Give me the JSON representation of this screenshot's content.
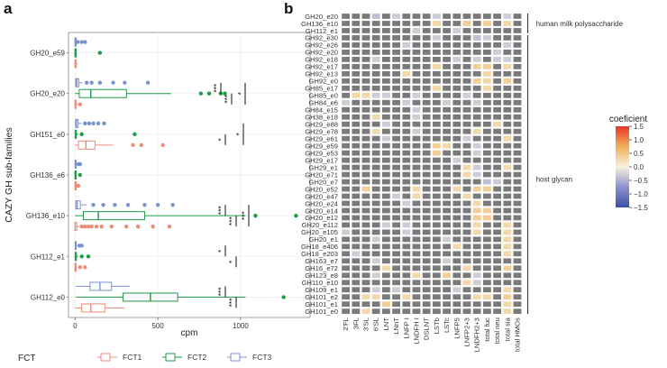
{
  "chart_data": [
    {
      "panel": "a",
      "type": "boxplot",
      "title": "",
      "xlabel": "cpm",
      "ylabel": "CAZY GH sub-families",
      "xlim": [
        -40,
        1420
      ],
      "x_ticks": [
        0,
        500,
        1000
      ],
      "categories": [
        "GH20_e59",
        "GH20_e20",
        "GH151_e0",
        "GH136_e6",
        "GH136_e10",
        "GH112_e1",
        "GH112_e0"
      ],
      "legend": {
        "title": "FCT",
        "position": "bottom",
        "entries": [
          {
            "name": "FCT1",
            "color": "#f08a78"
          },
          {
            "name": "FCT2",
            "color": "#1e9a48"
          },
          {
            "name": "FCT3",
            "color": "#7b93cc"
          }
        ]
      },
      "series": [
        {
          "name": "FCT3",
          "boxes": [
            {
              "category": "GH20_e59",
              "stats": [
                0,
                0,
                0,
                2,
                6
              ],
              "outliers": [
                15,
                40,
                60
              ]
            },
            {
              "category": "GH20_e20",
              "stats": [
                0,
                3,
                10,
                22,
                45
              ],
              "outliers": [
                70,
                100,
                150,
                230,
                300,
                440
              ]
            },
            {
              "category": "GH151_e0",
              "stats": [
                0,
                3,
                8,
                18,
                40
              ],
              "outliers": [
                60,
                85,
                110,
                140,
                175
              ]
            },
            {
              "category": "GH136_e6",
              "stats": [
                0,
                0,
                1,
                3,
                8
              ],
              "outliers": [
                20,
                30
              ]
            },
            {
              "category": "GH136_e10",
              "stats": [
                0,
                4,
                12,
                32,
                70
              ],
              "outliers": [
                110,
                170,
                240,
                320,
                420,
                500,
                590
              ]
            },
            {
              "category": "GH112_e1",
              "stats": [
                0,
                0,
                2,
                5,
                10
              ],
              "outliers": [
                25,
                40
              ]
            },
            {
              "category": "GH112_e0",
              "stats": [
                5,
                90,
                150,
                220,
                330
              ],
              "outliers": []
            }
          ]
        },
        {
          "name": "FCT2",
          "boxes": [
            {
              "category": "GH20_e59",
              "stats": [
                0,
                0,
                0,
                3,
                8
              ],
              "outliers": [
                150
              ]
            },
            {
              "category": "GH20_e20",
              "stats": [
                0,
                25,
                95,
                310,
                580
              ],
              "outliers": [
                760,
                810,
                880,
                905
              ]
            },
            {
              "category": "GH151_e0",
              "stats": [
                0,
                0,
                2,
                8,
                20
              ],
              "outliers": [
                40,
                360
              ]
            },
            {
              "category": "GH136_e6",
              "stats": [
                0,
                0,
                0,
                2,
                5
              ],
              "outliers": [
                30
              ]
            },
            {
              "category": "GH136_e10",
              "stats": [
                0,
                50,
                140,
                420,
                1030
              ],
              "outliers": [
                1090,
                1335
              ]
            },
            {
              "category": "GH112_e1",
              "stats": [
                0,
                0,
                2,
                8,
                18
              ],
              "outliers": [
                40,
                80
              ]
            },
            {
              "category": "GH112_e0",
              "stats": [
                5,
                290,
                455,
                620,
                1030
              ],
              "outliers": [
                1260
              ]
            }
          ]
        },
        {
          "name": "FCT1",
          "boxes": [
            {
              "category": "GH20_e59",
              "stats": [
                0,
                0,
                0,
                6,
                15
              ],
              "outliers": []
            },
            {
              "category": "GH20_e20",
              "stats": [
                0,
                0,
                0,
                5,
                12
              ],
              "outliers": [
                30
              ]
            },
            {
              "category": "GH151_e0",
              "stats": [
                0,
                20,
                65,
                120,
                230
              ],
              "outliers": [
                350,
                400,
                530
              ]
            },
            {
              "category": "GH136_e6",
              "stats": [
                0,
                0,
                0,
                0,
                0
              ],
              "outliers": [
                10,
                20
              ]
            },
            {
              "category": "GH136_e10",
              "stats": [
                0,
                0,
                0,
                10,
                25
              ],
              "outliers": [
                40,
                60,
                80,
                100,
                130,
                160,
                220,
                310,
                380,
                470,
                570
              ]
            },
            {
              "category": "GH112_e1",
              "stats": [
                0,
                0,
                0,
                4,
                10
              ],
              "outliers": [
                30,
                60
              ]
            },
            {
              "category": "GH112_e0",
              "stats": [
                0,
                40,
                95,
                180,
                300
              ],
              "outliers": []
            }
          ]
        }
      ],
      "significance": [
        {
          "category": "GH20_e20",
          "comparison": "FCT2 vs FCT1",
          "label": "***"
        },
        {
          "category": "GH20_e20",
          "comparison": "FCT2 vs FCT3",
          "label": "***"
        },
        {
          "category": "GH20_e20",
          "comparison": "FCT1 vs FCT3",
          "label": "*"
        },
        {
          "category": "GH151_e0",
          "comparison": "FCT1 vs FCT2",
          "label": "*"
        },
        {
          "category": "GH151_e0",
          "comparison": "FCT1 vs FCT3",
          "label": "*"
        },
        {
          "category": "GH136_e10",
          "comparison": "FCT3 vs FCT2",
          "label": "***"
        },
        {
          "category": "GH136_e10",
          "comparison": "FCT2 vs FCT1",
          "label": "***"
        },
        {
          "category": "GH136_e10",
          "comparison": "FCT1 vs FCT3",
          "label": "***"
        },
        {
          "category": "GH112_e1",
          "comparison": "FCT3 vs FCT2",
          "label": "*"
        },
        {
          "category": "GH112_e1",
          "comparison": "FCT2 vs FCT1",
          "label": "*"
        },
        {
          "category": "GH112_e0",
          "comparison": "FCT3 vs FCT2",
          "label": "***"
        },
        {
          "category": "GH112_e0",
          "comparison": "FCT2 vs FCT1",
          "label": "***"
        }
      ]
    },
    {
      "panel": "b",
      "type": "heatmap",
      "title": "",
      "xlabel": "",
      "ylabel": "",
      "rows": [
        "GH20_e20",
        "GH136_e10",
        "GH112_e1",
        "GH92_e30",
        "GH92_e26",
        "GH92_e20",
        "GH92_e18",
        "GH92_e17",
        "GH92_e13",
        "GH92_e0",
        "GH85_e17",
        "GH85_e0",
        "GH84_e6",
        "GH84_e15",
        "GH38_e18",
        "GH29_e88",
        "GH29_e78",
        "GH29_e61",
        "GH29_e59",
        "GH29_e53",
        "GH29_e17",
        "GH29_e1",
        "GH20_e71",
        "GH20_e7",
        "GH20_e52",
        "GH20_e47",
        "GH20_e24",
        "GH20_e14",
        "GH20_e12",
        "GH20_e112",
        "GH20_e105",
        "GH20_e1",
        "GH18_e406",
        "GH18_e203",
        "GH163_e7",
        "GH16_e72",
        "GH123_e8",
        "GH110_e10",
        "GH109_e1",
        "GH101_e2",
        "GH101_e1",
        "GH101_e0"
      ],
      "columns": [
        "2'FL",
        "3FL",
        "3'SL",
        "6'SL",
        "LNT",
        "LNnT",
        "LNFP I",
        "LNDFH I",
        "DSLNT",
        "LSTb",
        "LSTc",
        "LNFP5",
        "LNFP2+3",
        "LNDFH2+3",
        "total fuc",
        "total neu",
        "total sia",
        "total HMOs"
      ],
      "colorbar": {
        "title": "coeficient",
        "min": -1.5,
        "max": 1.5,
        "ticks": [
          1.5,
          1.0,
          0.5,
          0.0,
          -0.5,
          -1.0,
          -1.5
        ],
        "tick_labels": [
          "1.5",
          "1.0",
          "0.5",
          "0.0",
          "−0.5",
          "−1.0",
          "−1.5"
        ]
      },
      "na_color": "#7a7a7a",
      "row_groups": [
        {
          "label": "human milk polysaccharide",
          "from": 0,
          "to": 2
        },
        {
          "label": "host glycan",
          "from": 3,
          "to": 41
        }
      ],
      "cells": [
        [
          0,
          3,
          -0.4
        ],
        [
          0,
          5,
          -0.3
        ],
        [
          0,
          9,
          -0.3
        ],
        [
          0,
          16,
          -0.3
        ],
        [
          1,
          12,
          0.4
        ],
        [
          1,
          14,
          0.4
        ],
        [
          1,
          16,
          0.3
        ],
        [
          1,
          9,
          0.3
        ],
        [
          2,
          7,
          -0.3
        ],
        [
          2,
          11,
          -0.3
        ],
        [
          3,
          13,
          -0.4
        ],
        [
          3,
          14,
          -0.3
        ],
        [
          3,
          9,
          -0.3
        ],
        [
          4,
          6,
          -0.3
        ],
        [
          4,
          16,
          -0.3
        ],
        [
          5,
          15,
          -0.3
        ],
        [
          6,
          3,
          -0.3
        ],
        [
          6,
          11,
          -0.3
        ],
        [
          6,
          13,
          -0.3
        ],
        [
          6,
          15,
          -0.3
        ],
        [
          6,
          16,
          -0.3
        ],
        [
          7,
          9,
          0.3
        ],
        [
          7,
          13,
          0.4
        ],
        [
          7,
          14,
          0.4
        ],
        [
          7,
          16,
          0.3
        ],
        [
          8,
          6,
          0.3
        ],
        [
          8,
          14,
          0.3
        ],
        [
          9,
          13,
          0.4
        ],
        [
          9,
          14,
          0.3
        ],
        [
          9,
          16,
          0.4
        ],
        [
          10,
          9,
          0.3
        ],
        [
          10,
          14,
          0.3
        ],
        [
          11,
          1,
          0.3
        ],
        [
          11,
          2,
          0.3
        ],
        [
          11,
          3,
          -0.3
        ],
        [
          11,
          4,
          -0.3
        ],
        [
          11,
          7,
          -0.3
        ],
        [
          11,
          12,
          -0.3
        ],
        [
          12,
          0,
          -0.3
        ],
        [
          12,
          6,
          -0.3
        ],
        [
          12,
          10,
          -0.3
        ],
        [
          12,
          13,
          -0.3
        ],
        [
          13,
          7,
          -0.3
        ],
        [
          14,
          3,
          0.3
        ],
        [
          14,
          7,
          -0.3
        ],
        [
          15,
          4,
          -0.3
        ],
        [
          15,
          15,
          0.3
        ],
        [
          16,
          3,
          0.3
        ],
        [
          16,
          7,
          -0.3
        ],
        [
          16,
          13,
          0.3
        ],
        [
          17,
          4,
          -0.3
        ],
        [
          17,
          12,
          -0.3
        ],
        [
          17,
          16,
          0.3
        ],
        [
          18,
          9,
          0.4
        ],
        [
          18,
          10,
          0.3
        ],
        [
          18,
          13,
          -0.3
        ],
        [
          19,
          9,
          0.4
        ],
        [
          19,
          13,
          -0.3
        ],
        [
          20,
          11,
          -0.3
        ],
        [
          21,
          12,
          0.3
        ],
        [
          21,
          13,
          -0.3
        ],
        [
          21,
          16,
          0.3
        ],
        [
          22,
          12,
          0.3
        ],
        [
          22,
          13,
          -0.3
        ],
        [
          23,
          14,
          -0.4
        ],
        [
          23,
          15,
          -0.3
        ],
        [
          24,
          2,
          0.4
        ],
        [
          24,
          7,
          0.3
        ],
        [
          24,
          11,
          0.3
        ],
        [
          24,
          13,
          0.4
        ],
        [
          24,
          14,
          0.4
        ],
        [
          25,
          5,
          -0.3
        ],
        [
          25,
          7,
          0.3
        ],
        [
          25,
          12,
          0.3
        ],
        [
          26,
          6,
          -0.3
        ],
        [
          26,
          13,
          0.3
        ],
        [
          27,
          13,
          0.4
        ],
        [
          27,
          14,
          0.4
        ],
        [
          28,
          13,
          0.4
        ],
        [
          28,
          14,
          0.4
        ],
        [
          29,
          4,
          -0.3
        ],
        [
          29,
          6,
          -0.3
        ],
        [
          29,
          13,
          0.3
        ],
        [
          29,
          16,
          0.3
        ],
        [
          30,
          0,
          -0.3
        ],
        [
          30,
          6,
          -0.3
        ],
        [
          30,
          13,
          0.3
        ],
        [
          30,
          16,
          0.3
        ],
        [
          31,
          3,
          -0.3
        ],
        [
          31,
          10,
          -0.3
        ],
        [
          31,
          16,
          0.3
        ],
        [
          32,
          11,
          0.3
        ],
        [
          32,
          16,
          0.3
        ],
        [
          33,
          1,
          -0.3
        ],
        [
          33,
          16,
          0.3
        ],
        [
          34,
          3,
          -0.3
        ],
        [
          34,
          10,
          -0.3
        ],
        [
          35,
          4,
          0.3
        ],
        [
          35,
          12,
          0.3
        ],
        [
          35,
          16,
          0.4
        ],
        [
          36,
          3,
          -0.3
        ],
        [
          36,
          7,
          0.3
        ],
        [
          36,
          10,
          0.4
        ],
        [
          36,
          13,
          -0.3
        ],
        [
          37,
          12,
          0.3
        ],
        [
          37,
          13,
          -0.3
        ],
        [
          38,
          3,
          -0.3
        ],
        [
          38,
          5,
          -0.3
        ],
        [
          38,
          11,
          -0.3
        ],
        [
          38,
          16,
          0.3
        ],
        [
          39,
          2,
          0.3
        ],
        [
          39,
          3,
          0.3
        ],
        [
          39,
          6,
          0.3
        ],
        [
          39,
          13,
          0.3
        ],
        [
          39,
          14,
          0.3
        ],
        [
          39,
          16,
          0.4
        ],
        [
          40,
          4,
          0.4
        ],
        [
          40,
          16,
          0.3
        ],
        [
          41,
          2,
          0.3
        ],
        [
          41,
          16,
          0.3
        ]
      ]
    }
  ],
  "labels": {
    "panel_a": "a",
    "panel_b": "b",
    "cpm": "cpm",
    "ylabel": "CAZY GH sub-families",
    "legend_title": "FCT",
    "colorbar_title": "coeficient"
  }
}
